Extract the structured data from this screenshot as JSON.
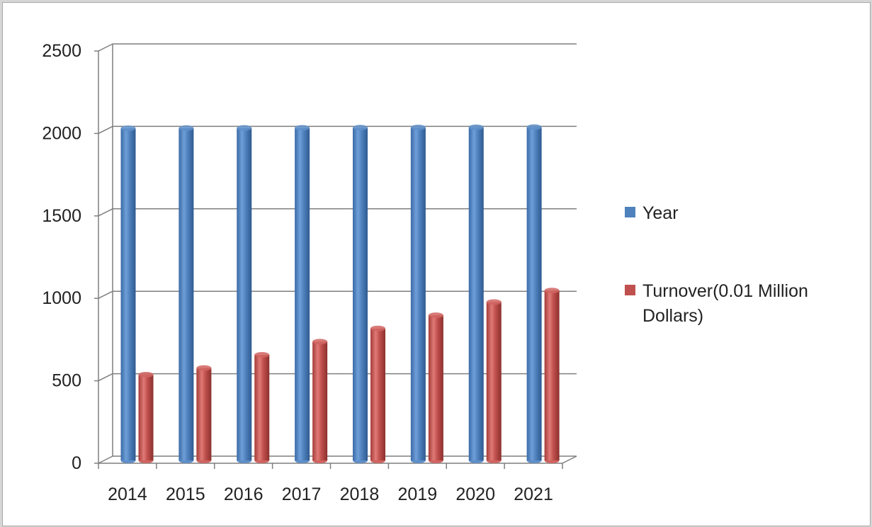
{
  "chart_data": {
    "type": "bar",
    "title": "",
    "xlabel": "",
    "ylabel": "",
    "categories": [
      "2014",
      "2015",
      "2016",
      "2017",
      "2018",
      "2019",
      "2020",
      "2021"
    ],
    "series": [
      {
        "name": "Year",
        "color": "#4f81bd",
        "values": [
          2014,
          2015,
          2016,
          2017,
          2018,
          2019,
          2020,
          2021
        ]
      },
      {
        "name": "Turnover(0.01 Million Dollars)",
        "color": "#c0504d",
        "values": [
          520,
          560,
          640,
          720,
          800,
          880,
          960,
          1030
        ]
      }
    ],
    "ylim": [
      0,
      2500
    ],
    "yticks": [
      "0",
      "500",
      "1000",
      "1500",
      "2000",
      "2500"
    ],
    "legend": {
      "position": "right",
      "entries": [
        {
          "lines": [
            "Year"
          ],
          "color": "#4f81bd"
        },
        {
          "lines": [
            "Turnover(0.01 Million",
            "Dollars)"
          ],
          "color": "#c0504d"
        }
      ]
    },
    "grid": true,
    "style": "3d-clustered-cylinder"
  }
}
